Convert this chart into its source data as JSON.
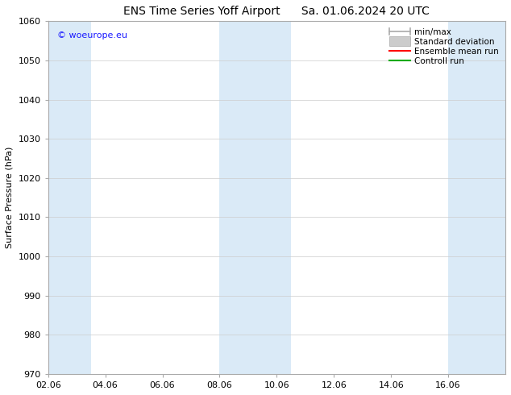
{
  "title_left": "ENS Time Series Yoff Airport",
  "title_right": "Sa. 01.06.2024 20 UTC",
  "ylabel": "Surface Pressure (hPa)",
  "xlabel": "",
  "ylim": [
    970,
    1060
  ],
  "yticks": [
    970,
    980,
    990,
    1000,
    1010,
    1020,
    1030,
    1040,
    1050,
    1060
  ],
  "xlim_start": 0,
  "xlim_end": 16,
  "xtick_labels": [
    "02.06",
    "04.06",
    "06.06",
    "08.06",
    "10.06",
    "12.06",
    "14.06",
    "16.06"
  ],
  "xtick_positions": [
    0,
    2,
    4,
    6,
    8,
    10,
    12,
    14
  ],
  "shaded_bands": [
    {
      "x_start": 0.0,
      "x_end": 1.5
    },
    {
      "x_start": 6.0,
      "x_end": 8.5
    },
    {
      "x_start": 14.0,
      "x_end": 16.0
    }
  ],
  "shaded_color": "#daeaf7",
  "grid_color": "#cccccc",
  "watermark_text": "© woeurope.eu",
  "watermark_color": "#1a1aff",
  "legend_entries": [
    {
      "label": "min/max",
      "color": "#aaaaaa",
      "lw": 1.2
    },
    {
      "label": "Standard deviation",
      "color": "#bbbbbb",
      "lw": 5
    },
    {
      "label": "Ensemble mean run",
      "color": "#ff0000",
      "lw": 1.5
    },
    {
      "label": "Controll run",
      "color": "#00aa00",
      "lw": 1.5
    }
  ],
  "background_color": "#ffffff",
  "title_fontsize": 10,
  "axis_fontsize": 8,
  "tick_fontsize": 8,
  "legend_fontsize": 7.5
}
